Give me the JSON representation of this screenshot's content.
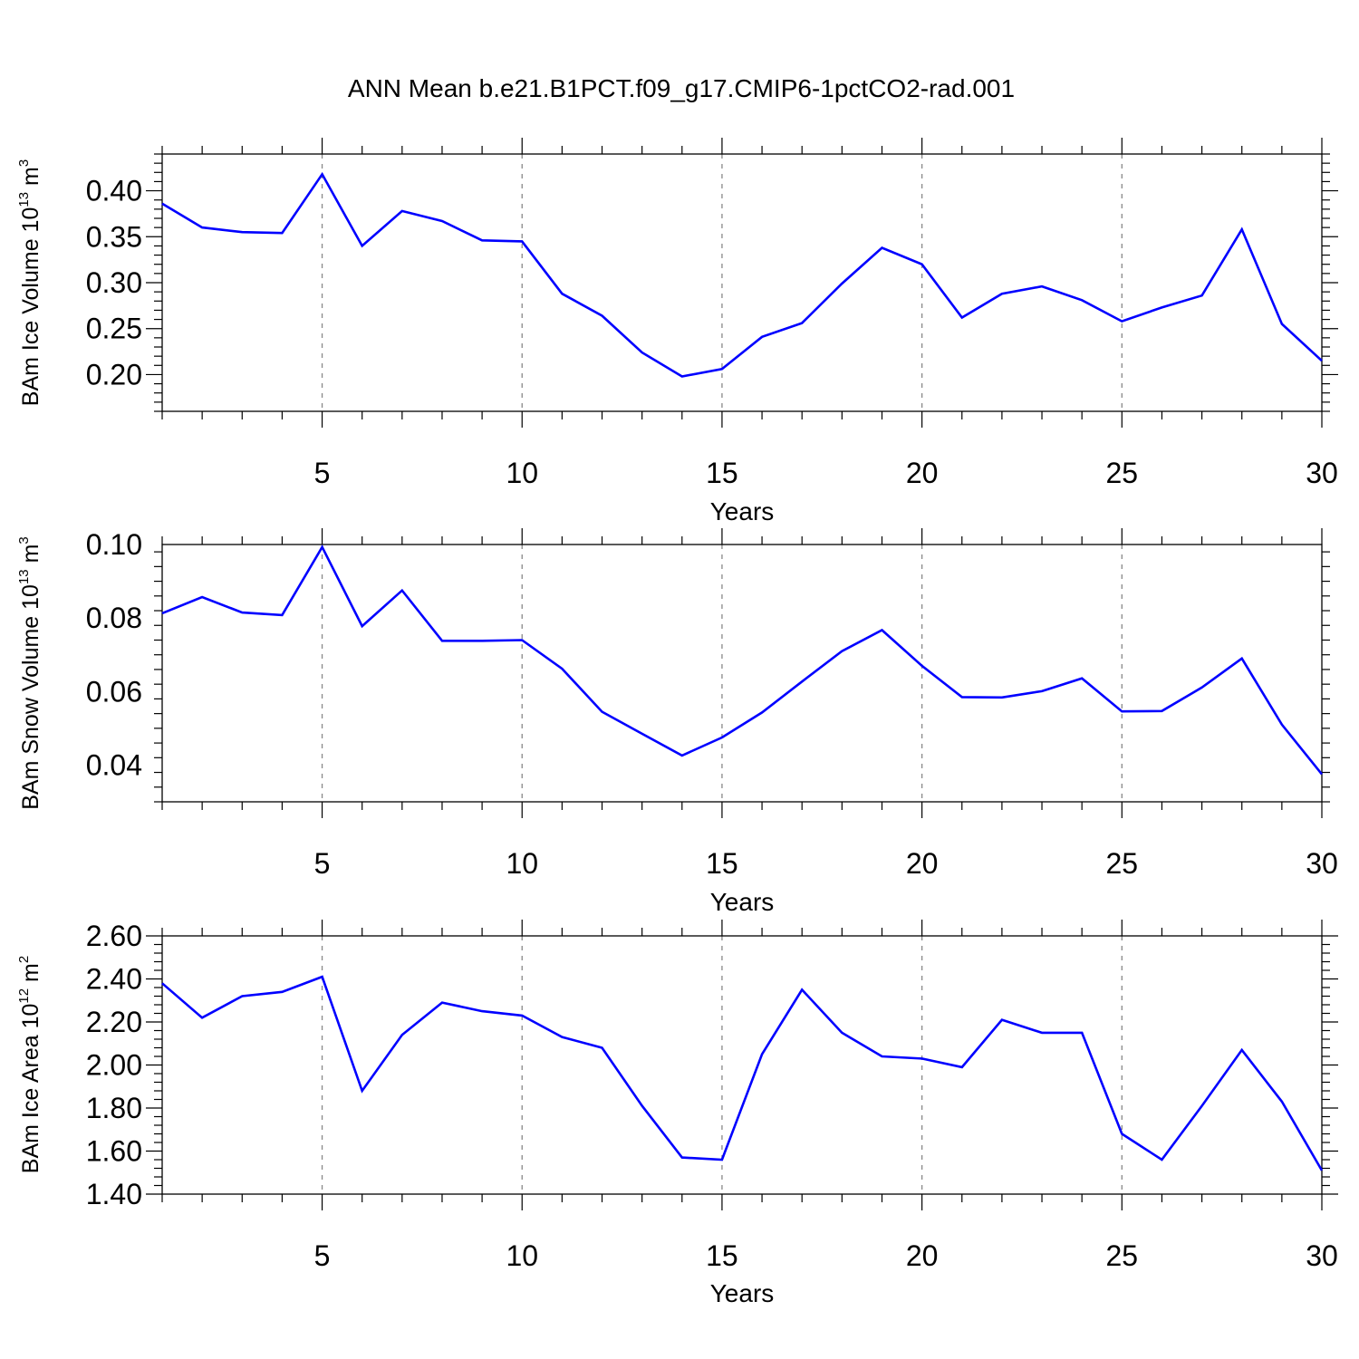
{
  "title": "ANN Mean b.e21.B1PCT.f09_g17.CMIP6-1pctCO2-rad.001",
  "colors": {
    "line": "#0000ff",
    "axis": "#000000",
    "grid": "#888888"
  },
  "chart_data": [
    {
      "type": "line",
      "xlabel": "Years",
      "ylabel": {
        "text": "BAm Ice Volume 10",
        "exp": "13",
        "unit": "m",
        "unit_exp": "3"
      },
      "xlim": [
        1,
        30
      ],
      "ylim": [
        0.16,
        0.44
      ],
      "xticks": [
        5,
        10,
        15,
        20,
        25,
        30
      ],
      "yticks": [
        "0.20",
        "0.25",
        "0.30",
        "0.35",
        "0.40"
      ],
      "grid": "x-dashed",
      "x": [
        1,
        2,
        3,
        4,
        5,
        6,
        7,
        8,
        9,
        10,
        11,
        12,
        13,
        14,
        15,
        16,
        17,
        18,
        19,
        20,
        21,
        22,
        23,
        24,
        25,
        26,
        27,
        28,
        29,
        30
      ],
      "series": [
        {
          "values": [
            0.386,
            0.36,
            0.355,
            0.354,
            0.418,
            0.34,
            0.378,
            0.367,
            0.346,
            0.345,
            0.288,
            0.264,
            0.224,
            0.198,
            0.206,
            0.241,
            0.256,
            0.299,
            0.338,
            0.32,
            0.262,
            0.288,
            0.296,
            0.281,
            0.258,
            0.273,
            0.286,
            0.358,
            0.255,
            0.215
          ]
        }
      ]
    },
    {
      "type": "line",
      "xlabel": "Years",
      "ylabel": {
        "text": "BAm Snow Volume 10",
        "exp": "13",
        "unit": "m",
        "unit_exp": "3"
      },
      "xlim": [
        1,
        30
      ],
      "ylim": [
        0.03,
        0.1
      ],
      "xticks": [
        5,
        10,
        15,
        20,
        25,
        30
      ],
      "yticks": [
        "0.04",
        "0.06",
        "0.08",
        "0.10"
      ],
      "grid": "x-dashed",
      "x": [
        1,
        2,
        3,
        4,
        5,
        6,
        7,
        8,
        9,
        10,
        11,
        12,
        13,
        14,
        15,
        16,
        17,
        18,
        19,
        20,
        21,
        22,
        23,
        24,
        25,
        26,
        27,
        28,
        29,
        30
      ],
      "series": [
        {
          "values": [
            0.0813,
            0.0857,
            0.0815,
            0.0808,
            0.0993,
            0.0778,
            0.0875,
            0.0738,
            0.0738,
            0.074,
            0.0662,
            0.0545,
            0.0485,
            0.0426,
            0.0475,
            0.0543,
            0.0627,
            0.071,
            0.0767,
            0.067,
            0.0585,
            0.0584,
            0.0601,
            0.0636,
            0.0546,
            0.0547,
            0.0611,
            0.069,
            0.051,
            0.0375
          ]
        }
      ]
    },
    {
      "type": "line",
      "xlabel": "Years",
      "ylabel": {
        "text": "BAm Ice Area 10",
        "exp": "12",
        "unit": "m",
        "unit_exp": "2"
      },
      "xlim": [
        1,
        30
      ],
      "ylim": [
        1.4,
        2.6
      ],
      "xticks": [
        5,
        10,
        15,
        20,
        25,
        30
      ],
      "yticks": [
        "1.40",
        "1.60",
        "1.80",
        "2.00",
        "2.20",
        "2.40",
        "2.60"
      ],
      "grid": "x-dashed",
      "x": [
        1,
        2,
        3,
        4,
        5,
        6,
        7,
        8,
        9,
        10,
        11,
        12,
        13,
        14,
        15,
        16,
        17,
        18,
        19,
        20,
        21,
        22,
        23,
        24,
        25,
        26,
        27,
        28,
        29,
        30
      ],
      "series": [
        {
          "values": [
            2.38,
            2.22,
            2.32,
            2.34,
            2.41,
            1.88,
            2.14,
            2.29,
            2.25,
            2.23,
            2.13,
            2.08,
            1.81,
            1.57,
            1.56,
            2.05,
            2.35,
            2.15,
            2.04,
            2.03,
            1.99,
            2.21,
            2.15,
            2.15,
            1.68,
            1.56,
            1.81,
            2.07,
            1.83,
            1.51
          ]
        }
      ]
    }
  ]
}
